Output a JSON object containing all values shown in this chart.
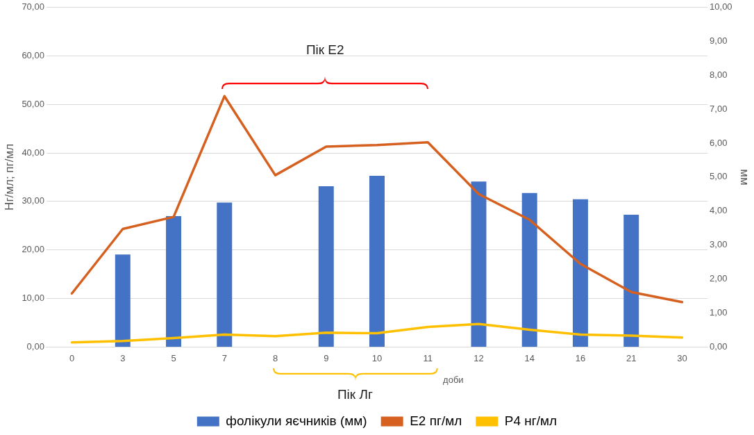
{
  "chart_data": {
    "type": "bar",
    "xlabel": "доби",
    "ylabel": "Нг/мл; пг/мл",
    "y2label": "мм",
    "categories": [
      "0",
      "3",
      "5",
      "7",
      "8",
      "9",
      "10",
      "11",
      "12",
      "14",
      "16",
      "21",
      "30"
    ],
    "series": [
      {
        "name": "фолікули яєчників (мм)",
        "axis": "y2",
        "color": "#4472c4",
        "values": [
          null,
          2.72,
          3.85,
          4.25,
          null,
          4.73,
          5.04,
          null,
          4.87,
          4.53,
          4.35,
          3.89,
          null
        ]
      },
      {
        "name": "E2 пг/мл",
        "type": "line",
        "color": "#d5601f",
        "values": [
          11.0,
          24.3,
          26.8,
          51.7,
          35.4,
          41.3,
          41.6,
          42.2,
          31.5,
          26.2,
          17.1,
          11.3,
          9.2
        ]
      },
      {
        "name": "P4 нг/мл",
        "type": "line",
        "color": "#ffc000",
        "values": [
          0.9,
          1.2,
          1.8,
          2.5,
          2.2,
          2.9,
          2.8,
          4.1,
          4.7,
          3.5,
          2.5,
          2.3,
          1.9
        ]
      }
    ],
    "ylim": [
      0,
      70
    ],
    "yticks": [
      {
        "value": 0,
        "label": "0,00"
      },
      {
        "value": 10,
        "label": "10,00"
      },
      {
        "value": 20,
        "label": "20,00"
      },
      {
        "value": 30,
        "label": "30,00"
      },
      {
        "value": 40,
        "label": "40,00"
      },
      {
        "value": 50,
        "label": "50,00"
      },
      {
        "value": 60,
        "label": "60,00"
      },
      {
        "value": 70,
        "label": "70,00"
      }
    ],
    "y2lim": [
      0,
      10
    ],
    "y2ticks": [
      {
        "value": 0,
        "label": "0,00"
      },
      {
        "value": 1,
        "label": "1,00"
      },
      {
        "value": 2,
        "label": "2,00"
      },
      {
        "value": 3,
        "label": "3,00"
      },
      {
        "value": 4,
        "label": "4,00"
      },
      {
        "value": 5,
        "label": "5,00"
      },
      {
        "value": 6,
        "label": "6,00"
      },
      {
        "value": 7,
        "label": "7,00"
      },
      {
        "value": 8,
        "label": "8,00"
      },
      {
        "value": 9,
        "label": "9,00"
      },
      {
        "value": 10,
        "label": "10,00"
      }
    ],
    "grid": "y",
    "legend": "bottom",
    "marker": "none",
    "line_style": "solid",
    "annotations": [
      "Пік Е2",
      "Пік Лг"
    ]
  }
}
